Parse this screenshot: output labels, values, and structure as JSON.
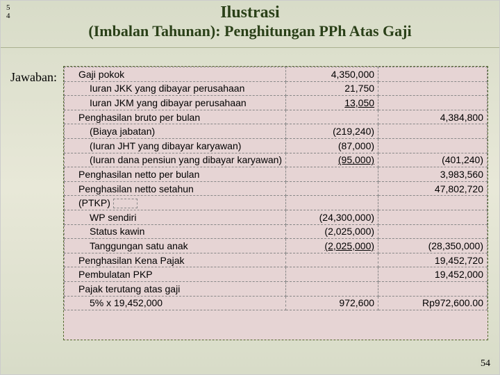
{
  "topleft": {
    "line1": "5",
    "line2": "4"
  },
  "title": "Ilustrasi",
  "subtitle": "(Imbalan Tahunan): Penghitungan PPh Atas Gaji",
  "jawaban": "Jawaban:",
  "rows": [
    {
      "desc": "Gaji pokok",
      "indent": 1,
      "v1": "4,350,000",
      "v2": ""
    },
    {
      "desc": "Iuran JKK yang dibayar perusahaan",
      "indent": 2,
      "v1": "21,750",
      "v2": ""
    },
    {
      "desc": "Iuran JKM yang dibayar perusahaan",
      "indent": 2,
      "v1": "13,050",
      "v2": "",
      "u1": true
    },
    {
      "desc": "Penghasilan bruto per bulan",
      "indent": 1,
      "v1": "",
      "v2": "4,384,800"
    },
    {
      "desc": "(Biaya jabatan)",
      "indent": 2,
      "v1": "(219,240)",
      "v2": ""
    },
    {
      "desc": "(Iuran JHT yang dibayar karyawan)",
      "indent": 2,
      "v1": "(87,000)",
      "v2": ""
    },
    {
      "desc": "(Iuran dana pensiun yang dibayar karyawan)",
      "indent": 2,
      "v1": "(95,000)",
      "v2": "(401,240)",
      "u1": true
    },
    {
      "desc": "Penghasilan netto per bulan",
      "indent": 1,
      "v1": "",
      "v2": "3,983,560"
    },
    {
      "desc": "Penghasilan netto setahun",
      "indent": 1,
      "v1": "",
      "v2": "47,802,720"
    },
    {
      "desc": "(PTKP)",
      "indent": 1,
      "v1": "",
      "v2": "",
      "ptkp": true
    },
    {
      "desc": "WP sendiri",
      "indent": 2,
      "v1": "(24,300,000)",
      "v2": ""
    },
    {
      "desc": "Status kawin",
      "indent": 2,
      "v1": "(2,025,000)",
      "v2": ""
    },
    {
      "desc": "Tanggungan satu anak",
      "indent": 2,
      "v1": "(2,025,000)",
      "v2": "(28,350,000)",
      "u1": true
    },
    {
      "desc": "Penghasilan Kena Pajak",
      "indent": 1,
      "v1": "",
      "v2": "19,452,720"
    },
    {
      "desc": "Pembulatan PKP",
      "indent": 1,
      "v1": "",
      "v2": "19,452,000"
    },
    {
      "desc": "Pajak terutang atas gaji",
      "indent": 1,
      "v1": "",
      "v2": ""
    },
    {
      "desc": "5% x 19,452,000",
      "indent": 2,
      "v1": "972,600",
      "v2": "Rp972,600.00"
    }
  ],
  "pagenum": "54",
  "colors": {
    "slide_bg_top": "#d8dcc8",
    "slide_bg_mid": "#e8e8d8",
    "box_bg": "#e6d4d4",
    "title_color": "#2a4018",
    "border_dash": "#556b2f"
  }
}
